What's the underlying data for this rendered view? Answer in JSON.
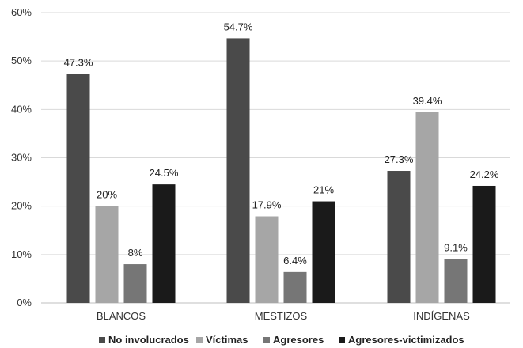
{
  "chart_data": {
    "type": "bar",
    "categories": [
      "BLANCOS",
      "MESTIZOS",
      "INDÍGENAS"
    ],
    "series": [
      {
        "name": "No involucrados",
        "values": [
          47.3,
          54.7,
          27.3
        ],
        "labels": [
          "47.3%",
          "54.7%",
          "27.3%"
        ],
        "color": "#4a4a4a"
      },
      {
        "name": "Víctimas",
        "values": [
          20,
          17.9,
          39.4
        ],
        "labels": [
          "20%",
          "17.9%",
          "39.4%"
        ],
        "color": "#a6a6a6"
      },
      {
        "name": "Agresores",
        "values": [
          8,
          6.4,
          9.1
        ],
        "labels": [
          "8%",
          "6.4%",
          "9.1%"
        ],
        "color": "#767676"
      },
      {
        "name": "Agresores-victimizados",
        "values": [
          24.5,
          21,
          24.2
        ],
        "labels": [
          "24.5%",
          "21%",
          "24.2%"
        ],
        "color": "#1a1a1a"
      }
    ],
    "ylim": [
      0,
      60
    ],
    "yticks": [
      0,
      10,
      20,
      30,
      40,
      50,
      60
    ],
    "ytick_labels": [
      "0%",
      "10%",
      "20%",
      "30%",
      "40%",
      "50%",
      "60%"
    ],
    "grid": true,
    "legend_position": "bottom",
    "title": "",
    "xlabel": "",
    "ylabel": ""
  }
}
